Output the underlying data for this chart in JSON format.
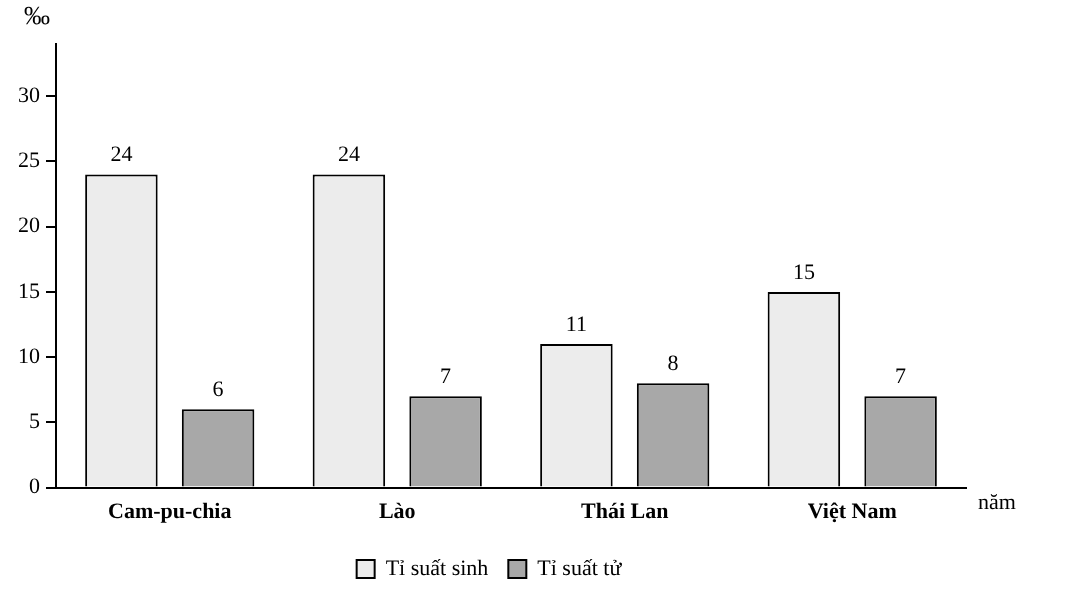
{
  "chart_data": {
    "type": "bar",
    "ylabel": "‰",
    "xlabel": "năm",
    "categories": [
      "Cam-pu-chia",
      "Lào",
      "Thái Lan",
      "Việt Nam"
    ],
    "series": [
      {
        "name": "Tỉ suất sinh",
        "color": "#ececec",
        "values": [
          24,
          24,
          11,
          15
        ]
      },
      {
        "name": "Tỉ suất tử",
        "color": "#a8a8a8",
        "values": [
          6,
          7,
          8,
          7
        ]
      }
    ],
    "ylim": [
      0,
      34
    ],
    "yticks": [
      0,
      5,
      10,
      15,
      20,
      25,
      30
    ],
    "data_labels": true,
    "grid": false,
    "legend": "bottom"
  }
}
